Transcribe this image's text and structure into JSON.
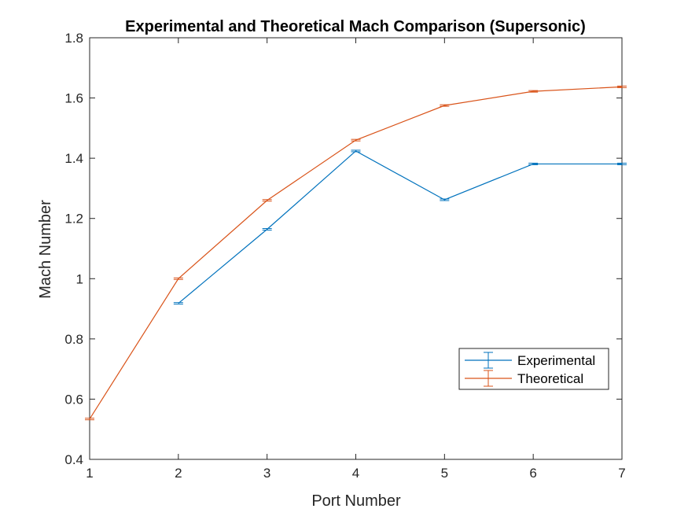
{
  "chart_data": {
    "type": "line",
    "title": "Experimental and Theoretical Mach Comparison (Supersonic)",
    "xlabel": "Port Number",
    "ylabel": "Mach Number",
    "xlim": [
      1,
      7
    ],
    "ylim": [
      0.4,
      1.8
    ],
    "xticks": [
      1,
      2,
      3,
      4,
      5,
      6,
      7
    ],
    "xtick_labels": [
      "1",
      "2",
      "3",
      "4",
      "5",
      "6",
      "7"
    ],
    "yticks": [
      0.4,
      0.6,
      0.8,
      1.0,
      1.2,
      1.4,
      1.6,
      1.8
    ],
    "ytick_labels": [
      "0.4",
      "0.6",
      "0.8",
      "1",
      "1.2",
      "1.4",
      "1.6",
      "1.8"
    ],
    "grid": false,
    "legend_position": "lower-right",
    "series": [
      {
        "name": "Experimental",
        "color": "#0072BD",
        "marker": "errorbar",
        "x": [
          2,
          3,
          4,
          5,
          6,
          7
        ],
        "y": [
          0.918,
          1.164,
          1.424,
          1.262,
          1.381,
          1.381
        ]
      },
      {
        "name": "Theoretical",
        "color": "#D95319",
        "marker": "errorbar",
        "x": [
          1,
          2,
          3,
          4,
          5,
          6,
          7
        ],
        "y": [
          0.534,
          1.0,
          1.26,
          1.46,
          1.575,
          1.622,
          1.637
        ]
      }
    ]
  }
}
